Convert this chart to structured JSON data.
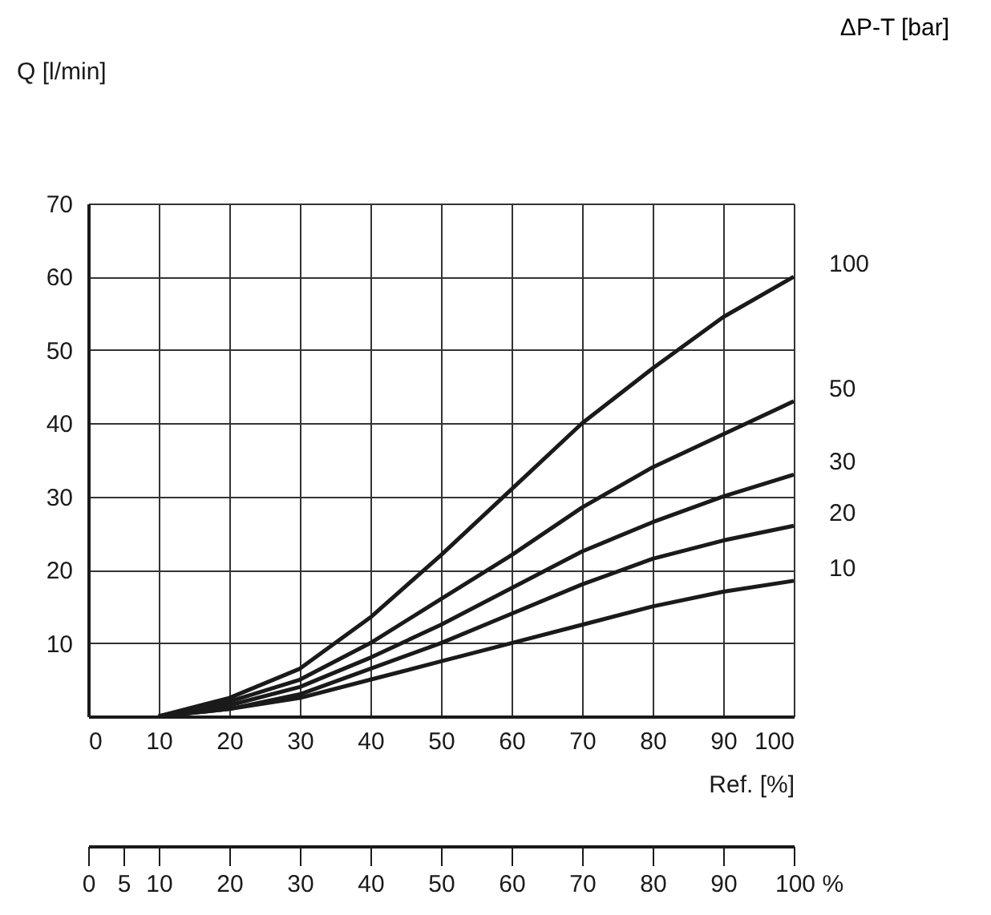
{
  "chart_data": {
    "type": "line",
    "xlabel": "Ref. [%]",
    "ylabel": "Q [l/min]",
    "legend_title": "ΔP-T [bar]",
    "x": [
      10,
      20,
      30,
      40,
      50,
      60,
      70,
      80,
      90,
      100
    ],
    "series": [
      {
        "name": "100",
        "color": "#1a1a1a",
        "values": [
          0,
          2.5,
          6.5,
          13.5,
          22,
          31,
          40,
          47.5,
          54.5,
          60
        ]
      },
      {
        "name": "50",
        "color": "#1a1a1a",
        "values": [
          0,
          2,
          5,
          10,
          16,
          22,
          28.5,
          34,
          38.5,
          43
        ]
      },
      {
        "name": "30",
        "color": "#1a1a1a",
        "values": [
          0,
          1.5,
          4,
          8,
          12.5,
          17.5,
          22.5,
          26.5,
          30,
          33
        ]
      },
      {
        "name": "20",
        "color": "#1a1a1a",
        "values": [
          0,
          1,
          3,
          6.5,
          10,
          14,
          18,
          21.5,
          24,
          26
        ]
      },
      {
        "name": "10",
        "color": "#1a1a1a",
        "values": [
          0,
          1,
          2.5,
          5,
          7.5,
          10,
          12.5,
          15,
          17,
          18.5
        ]
      }
    ],
    "xlim": [
      0,
      100
    ],
    "ylim": [
      0,
      70
    ],
    "xticks": [
      0,
      10,
      20,
      30,
      40,
      50,
      60,
      70,
      80,
      90,
      100
    ],
    "yticks": [
      {
        "value": 0,
        "label": null
      },
      10,
      20,
      30,
      40,
      50,
      60,
      70
    ],
    "x2lim": [
      0,
      100
    ],
    "x2ticks": [
      0,
      5,
      10,
      20,
      30,
      40,
      50,
      60,
      70,
      80,
      90,
      {
        "value": 100,
        "label": "100 %"
      }
    ],
    "grid": true,
    "legend": false,
    "marker": "none",
    "line_style": "solid"
  }
}
